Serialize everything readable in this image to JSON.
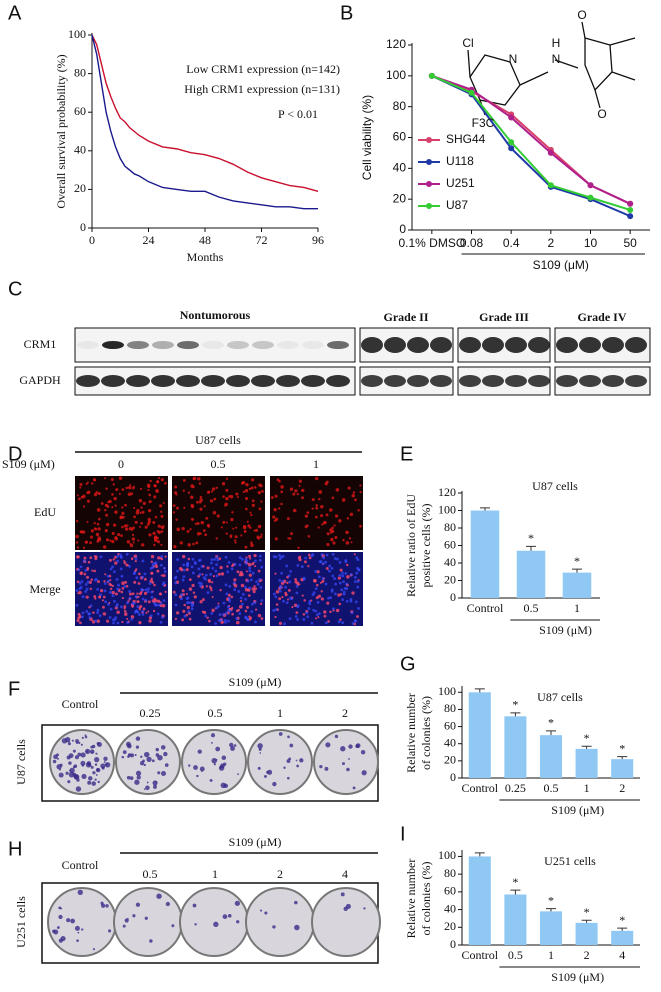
{
  "chart_data": [
    {
      "panel": "A",
      "type": "line",
      "ylabel": "Overall survival probability (%)",
      "xlabel": "Months",
      "xlim": [
        0,
        96
      ],
      "xticks": [
        0,
        24,
        48,
        72,
        96
      ],
      "ylim": [
        0,
        100
      ],
      "yticks": [
        0,
        20,
        40,
        60,
        80,
        100
      ],
      "x": [
        0,
        2,
        4,
        6,
        8,
        10,
        12,
        14,
        16,
        18,
        20,
        24,
        30,
        36,
        42,
        48,
        54,
        60,
        66,
        72,
        78,
        84,
        90,
        96
      ],
      "series": [
        {
          "name": "Low CRM1 expression (n=142)",
          "color": "#c8102e",
          "values": [
            100,
            95,
            85,
            75,
            68,
            62,
            57,
            55,
            52,
            50,
            48,
            45,
            42,
            41,
            39,
            38,
            36,
            33,
            29,
            26,
            24,
            22,
            21,
            19
          ]
        },
        {
          "name": "High CRM1 expression (n=131)",
          "color": "#1a1a8c",
          "values": [
            100,
            90,
            75,
            60,
            50,
            42,
            36,
            32,
            30,
            28,
            27,
            24,
            21,
            20,
            19,
            19,
            16,
            14,
            13,
            12,
            11,
            11,
            10,
            10
          ]
        }
      ],
      "annotation": "P < 0.01"
    },
    {
      "panel": "B",
      "type": "line",
      "ylabel": "Cell viability (%)",
      "xlabel": "S109 (μM)",
      "categories": [
        "0.1% DMSO",
        "0.08",
        "0.4",
        "2",
        "10",
        "50"
      ],
      "ylim": [
        0,
        120
      ],
      "yticks": [
        0,
        20,
        40,
        60,
        80,
        100,
        120
      ],
      "series": [
        {
          "name": "SHG44",
          "color": "#d6406a",
          "values": [
            100,
            90,
            75,
            52,
            29,
            17
          ]
        },
        {
          "name": "U118",
          "color": "#1f3aa8",
          "values": [
            100,
            88,
            53,
            28,
            20,
            9
          ]
        },
        {
          "name": "U251",
          "color": "#b0208c",
          "values": [
            100,
            91,
            73,
            50,
            29,
            17
          ]
        },
        {
          "name": "U87",
          "color": "#33cc33",
          "values": [
            100,
            89,
            57,
            29,
            21,
            13
          ]
        }
      ]
    },
    {
      "panel": "E",
      "type": "bar",
      "title": "U87 cells",
      "ylabel": [
        "Relative ratio of EdU",
        "positive cells (%)"
      ],
      "xlabel": "S109 (μM)",
      "categories": [
        "Control",
        "0.5",
        "1"
      ],
      "values": [
        100,
        54,
        29
      ],
      "errors": [
        3,
        5,
        4
      ],
      "significance": [
        null,
        "*",
        "*"
      ],
      "ylim": [
        0,
        120
      ],
      "yticks": [
        0,
        20,
        40,
        60,
        80,
        100,
        120
      ],
      "color": "#90c8f4"
    },
    {
      "panel": "G",
      "type": "bar",
      "title": "U87 cells",
      "ylabel": [
        "Relative number",
        "of colonies (%)"
      ],
      "xlabel": "S109 (μM)",
      "categories": [
        "Control",
        "0.25",
        "0.5",
        "1",
        "2"
      ],
      "values": [
        100,
        72,
        50,
        34,
        22
      ],
      "errors": [
        4,
        4,
        5,
        3,
        3
      ],
      "significance": [
        null,
        "*",
        "*",
        "*",
        "*"
      ],
      "ylim": [
        0,
        105
      ],
      "yticks": [
        0,
        20,
        40,
        60,
        80,
        100
      ],
      "color": "#90c8f4"
    },
    {
      "panel": "I",
      "type": "bar",
      "title": "U251 cells",
      "ylabel": [
        "Relative number",
        "of colonies (%)"
      ],
      "xlabel": "S109 (μM)",
      "categories": [
        "Control",
        "0.5",
        "1",
        "2",
        "4"
      ],
      "values": [
        100,
        57,
        38,
        25,
        16
      ],
      "errors": [
        4,
        5,
        3,
        3,
        3
      ],
      "significance": [
        null,
        "*",
        "*",
        "*",
        "*"
      ],
      "ylim": [
        0,
        105
      ],
      "yticks": [
        0,
        20,
        40,
        60,
        80,
        100
      ],
      "color": "#90c8f4"
    }
  ],
  "structure": {
    "atoms": [
      "Cl",
      "N",
      "H",
      "N",
      "O",
      "O",
      "F3C"
    ]
  },
  "blot": {
    "panel": "C",
    "groups": [
      "Nontumorous",
      "Grade II",
      "Grade III",
      "Grade IV"
    ],
    "rows": [
      "CRM1",
      "GAPDH"
    ]
  },
  "edu": {
    "panel": "D",
    "title": "U87 cells",
    "treatment": "S109 (μM)",
    "doses": [
      "0",
      "0.5",
      "1"
    ],
    "rows": [
      "EdU",
      "Merge"
    ]
  },
  "colony_u87": {
    "panel": "F",
    "cell_line": "U87 cells",
    "control": "Control",
    "treatment": "S109 (μM)",
    "doses": [
      "0.25",
      "0.5",
      "1",
      "2"
    ]
  },
  "colony_u251": {
    "panel": "H",
    "cell_line": "U251 cells",
    "control": "Control",
    "treatment": "S109 (μM)",
    "doses": [
      "0.5",
      "1",
      "2",
      "4"
    ]
  }
}
